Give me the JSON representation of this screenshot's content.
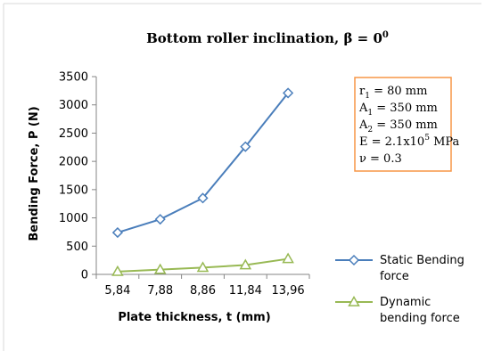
{
  "chart_data": {
    "type": "line",
    "title": {
      "main": "Bottom roller inclination, β = 0",
      "superscript": "0"
    },
    "xlabel": "Plate thickness, t (mm)",
    "ylabel": "Bending Force, P (N)",
    "categories": [
      "5,84",
      "7,88",
      "8,86",
      "11,84",
      "13,96"
    ],
    "ylim": [
      0,
      3500
    ],
    "yticks": [
      "0",
      "500",
      "1000",
      "1500",
      "2000",
      "2500",
      "3000",
      "3500"
    ],
    "series": [
      {
        "name_lines": [
          "Static Bending",
          "force"
        ],
        "marker": "diamond",
        "color": "#4a7ebb",
        "values": [
          740,
          975,
          1350,
          2260,
          3210
        ]
      },
      {
        "name_lines": [
          "Dynamic",
          "bending force"
        ],
        "marker": "triangle",
        "color": "#98b954",
        "values": [
          50,
          85,
          120,
          165,
          275
        ]
      }
    ],
    "parameters_box": {
      "border_color": "#f79646",
      "lines": [
        {
          "base": "r",
          "sub": "1",
          "sup": "",
          "rest": " = 80 mm"
        },
        {
          "base": "A",
          "sub": "1",
          "sup": "",
          "rest": " = 350 mm"
        },
        {
          "base": "A",
          "sub": "2",
          "sup": "",
          "rest": " = 350 mm"
        },
        {
          "base": "E = 2.1x10",
          "sub": "",
          "sup": "5",
          "rest": " MPa"
        },
        {
          "base": "ν = 0.3",
          "sub": "",
          "sup": "",
          "rest": ""
        }
      ]
    }
  }
}
